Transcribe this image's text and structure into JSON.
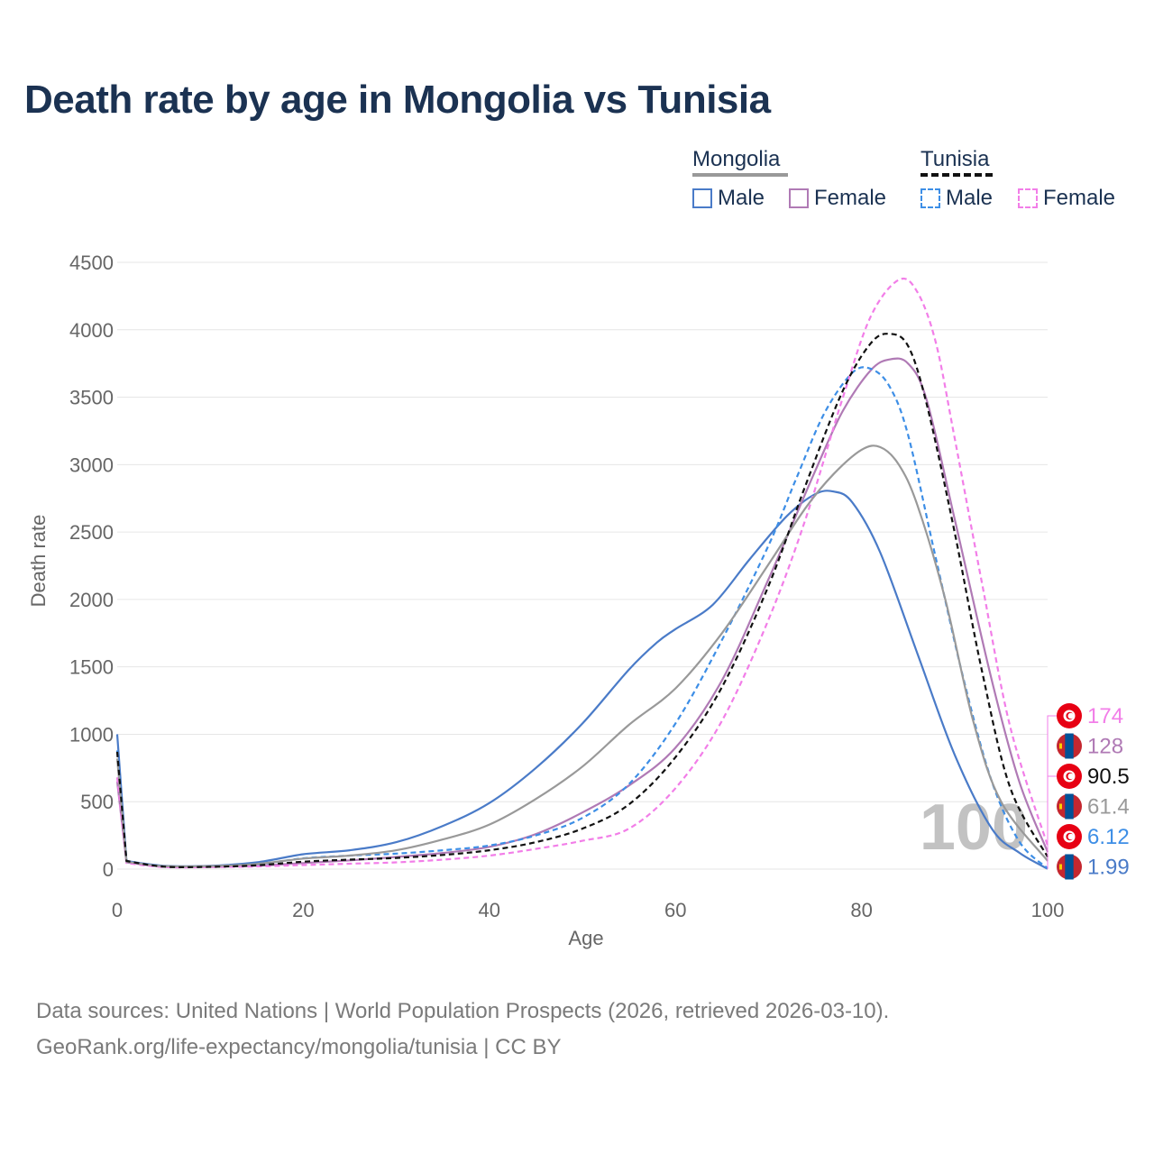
{
  "title": "Death rate by age in Mongolia vs Tunisia",
  "legend": {
    "groups": [
      {
        "name": "Mongolia",
        "items": [
          {
            "label": "Male",
            "color": "#4a7bc8",
            "dash": "solid"
          },
          {
            "label": "Female",
            "color": "#b07ab5",
            "dash": "solid"
          }
        ],
        "total_color": "#999999"
      },
      {
        "name": "Tunisia",
        "items": [
          {
            "label": "Male",
            "color": "#3d8ee6",
            "dash": "dashed"
          },
          {
            "label": "Female",
            "color": "#f27ee8",
            "dash": "dashed"
          }
        ],
        "total_color": "#111111"
      }
    ]
  },
  "watermark": "100",
  "source_line1": "Data sources: United Nations | World Population Prospects (2026, retrieved 2026-03-10).",
  "source_line2": "GeoRank.org/life-expectancy/mongolia/tunisia | CC BY",
  "chart_data": {
    "type": "line",
    "title": "Death rate by age in Mongolia vs Tunisia",
    "xlabel": "Age",
    "ylabel": "Death rate",
    "xlim": [
      0,
      100
    ],
    "ylim": [
      0,
      4500
    ],
    "xticks": [
      0,
      20,
      40,
      60,
      80,
      100
    ],
    "yticks": [
      0,
      500,
      1000,
      1500,
      2000,
      2500,
      3000,
      3500,
      4000,
      4500
    ],
    "grid": true,
    "legend_position": "top-right",
    "series": [
      {
        "name": "Mongolia Male",
        "color": "#4a7bc8",
        "dash": "solid",
        "end_label": "1.99",
        "x": [
          0,
          1,
          5,
          10,
          15,
          20,
          25,
          30,
          35,
          40,
          45,
          50,
          55,
          58,
          60,
          64,
          68,
          72,
          75,
          77,
          79,
          82,
          86,
          90,
          94,
          97,
          100
        ],
        "y": [
          1000,
          60,
          25,
          25,
          50,
          110,
          140,
          200,
          320,
          490,
          750,
          1080,
          1480,
          1680,
          1780,
          1960,
          2300,
          2620,
          2780,
          2800,
          2720,
          2350,
          1600,
          850,
          300,
          120,
          2
        ]
      },
      {
        "name": "Mongolia Female",
        "color": "#b07ab5",
        "dash": "solid",
        "end_label": "128",
        "x": [
          0,
          1,
          5,
          10,
          15,
          20,
          25,
          30,
          35,
          40,
          45,
          50,
          55,
          60,
          65,
          70,
          75,
          78,
          81,
          83,
          85,
          87,
          90,
          94,
          97,
          100
        ],
        "y": [
          650,
          50,
          20,
          20,
          25,
          45,
          65,
          90,
          120,
          165,
          260,
          420,
          620,
          900,
          1400,
          2150,
          2950,
          3400,
          3700,
          3780,
          3750,
          3480,
          2600,
          1400,
          640,
          128
        ]
      },
      {
        "name": "Tunisia Male",
        "color": "#3d8ee6",
        "dash": "dashed",
        "end_label": "6.12",
        "x": [
          0,
          1,
          5,
          10,
          15,
          20,
          25,
          30,
          35,
          40,
          45,
          50,
          55,
          60,
          65,
          70,
          73,
          76,
          79,
          81,
          83,
          85,
          88,
          91,
          94,
          97,
          100
        ],
        "y": [
          880,
          55,
          20,
          18,
          35,
          80,
          100,
          115,
          140,
          175,
          250,
          380,
          630,
          1080,
          1700,
          2400,
          2900,
          3380,
          3680,
          3710,
          3580,
          3220,
          2300,
          1400,
          650,
          200,
          6
        ]
      },
      {
        "name": "Tunisia Female",
        "color": "#f27ee8",
        "dash": "dashed",
        "end_label": "174",
        "x": [
          0,
          1,
          5,
          10,
          15,
          20,
          25,
          30,
          35,
          40,
          45,
          50,
          55,
          60,
          65,
          70,
          74,
          78,
          81,
          84,
          86,
          88,
          90,
          93,
          96,
          100
        ],
        "y": [
          680,
          45,
          15,
          15,
          20,
          30,
          40,
          50,
          70,
          100,
          150,
          210,
          300,
          600,
          1100,
          1850,
          2600,
          3500,
          4100,
          4370,
          4280,
          3900,
          3200,
          2100,
          1050,
          174
        ]
      },
      {
        "name": "Mongolia",
        "color": "#999999",
        "dash": "solid",
        "end_label": "61.4",
        "x": [
          0,
          1,
          5,
          10,
          15,
          20,
          25,
          30,
          35,
          40,
          45,
          50,
          55,
          60,
          65,
          70,
          74,
          77,
          80,
          82,
          84,
          86,
          89,
          92,
          95,
          100
        ],
        "y": [
          820,
          55,
          22,
          22,
          38,
          78,
          100,
          140,
          220,
          330,
          520,
          760,
          1070,
          1340,
          1750,
          2260,
          2680,
          2930,
          3110,
          3130,
          3000,
          2700,
          2000,
          1100,
          500,
          61
        ]
      },
      {
        "name": "Tunisia",
        "color": "#111111",
        "dash": "dashed",
        "end_label": "90.5",
        "x": [
          0,
          1,
          5,
          10,
          15,
          20,
          25,
          30,
          35,
          40,
          45,
          50,
          55,
          60,
          65,
          70,
          74,
          78,
          81,
          83,
          85,
          87,
          90,
          93,
          96,
          100
        ],
        "y": [
          870,
          60,
          18,
          17,
          28,
          55,
          70,
          83,
          105,
          140,
          200,
          300,
          480,
          830,
          1350,
          2100,
          2850,
          3550,
          3900,
          3970,
          3880,
          3450,
          2500,
          1450,
          600,
          90
        ]
      }
    ],
    "end_marker_order": [
      {
        "country": "Tunisia",
        "value": "174",
        "color": "#f27ee8"
      },
      {
        "country": "Mongolia",
        "value": "128",
        "color": "#b07ab5"
      },
      {
        "country": "Tunisia",
        "value": "90.5",
        "color": "#111111"
      },
      {
        "country": "Mongolia",
        "value": "61.4",
        "color": "#999999"
      },
      {
        "country": "Tunisia",
        "value": "6.12",
        "color": "#3d8ee6"
      },
      {
        "country": "Mongolia",
        "value": "1.99",
        "color": "#4a7bc8"
      }
    ]
  }
}
